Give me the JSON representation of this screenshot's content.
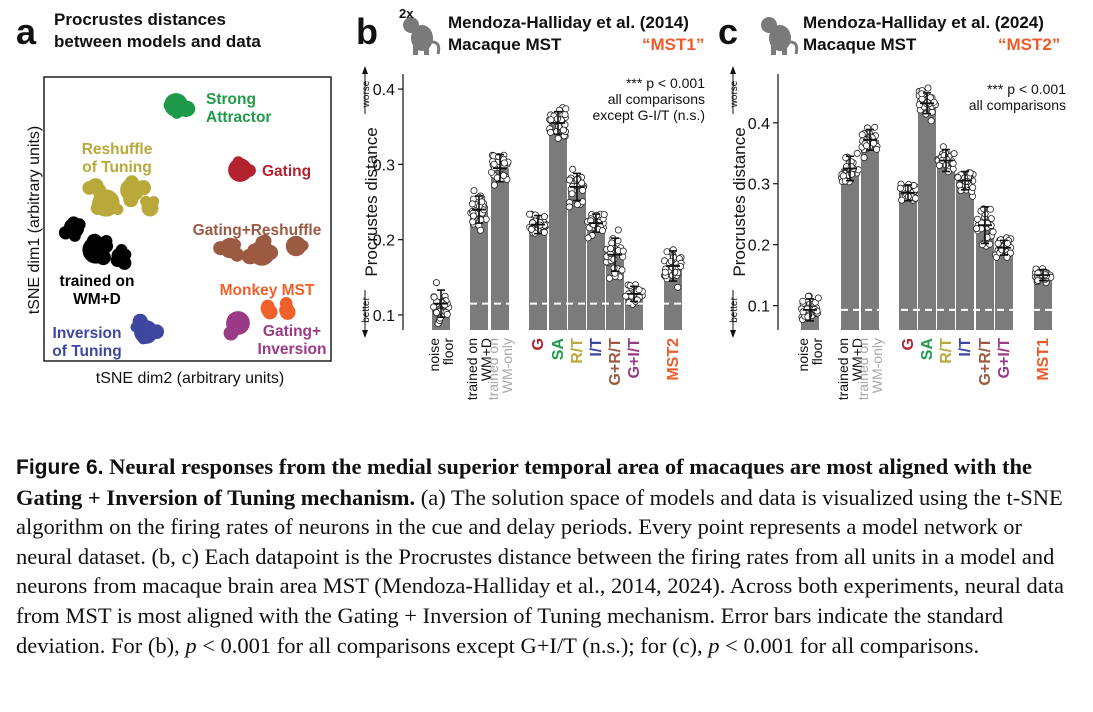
{
  "panel_a": {
    "letter": "a",
    "title_line1": "Procrustes distances",
    "title_line2": "between models and data",
    "xlabel": "tSNE dim2 (arbitrary units)",
    "ylabel": "tSNE dim1 (arbitrary units)",
    "clusters": [
      {
        "label_lines": [
          "Strong",
          "Attractor"
        ],
        "color": "#1f9a4a"
      },
      {
        "label_lines": [
          "Reshuffle",
          "of Tuning"
        ],
        "color": "#b9a83a"
      },
      {
        "label_lines": [
          "Gating"
        ],
        "color": "#b3222f"
      },
      {
        "label_lines": [
          "Gating+Reshuffle"
        ],
        "color": "#9b5a41"
      },
      {
        "label_lines": [
          "trained on",
          "WM+D"
        ],
        "color": "#000000"
      },
      {
        "label_lines": [
          "Monkey MST"
        ],
        "color": "#f0602a"
      },
      {
        "label_lines": [
          "Gating+",
          "Inversion"
        ],
        "color": "#9b3a86"
      },
      {
        "label_lines": [
          "Inversion",
          "of Tuning"
        ],
        "color": "#3d47a0"
      }
    ]
  },
  "chart_data": [
    {
      "type": "bar",
      "panel": "b",
      "header_prefix": "2x",
      "title": "Mendoza-Halliday et al. (2014)",
      "subtitle": "Macaque MST",
      "tag": "“MST1”",
      "ylabel": "Procrustes distance",
      "ylabel_top": "worse",
      "ylabel_bottom": "better",
      "ylim": [
        0.08,
        0.42
      ],
      "yticks": [
        0.1,
        0.2,
        0.3,
        0.4
      ],
      "ytick_labels": [
        "0.1",
        "0.2",
        "0.3",
        "0.4"
      ],
      "stats_lines": [
        "*** p < 0.001",
        "all comparisons",
        "except G-I/T (n.s.)"
      ],
      "noise_floor_line": 0.115,
      "categories": [
        {
          "label": "noise floor",
          "lines": [
            "noise",
            "floor"
          ],
          "value": 0.115,
          "sd": 0.018,
          "color": "#111111"
        },
        {
          "label": "trained on WM+D",
          "lines": [
            "trained on",
            "WM+D"
          ],
          "value": 0.24,
          "sd": 0.018,
          "color": "#111111"
        },
        {
          "label": "trained on WM-only",
          "lines": [
            "trained on",
            "WM-only"
          ],
          "value": 0.295,
          "sd": 0.018,
          "color": "#a8a8a8"
        },
        {
          "label": "G",
          "lines": [
            "G"
          ],
          "value": 0.22,
          "sd": 0.012,
          "color": "#b3222f"
        },
        {
          "label": "SA",
          "lines": [
            "SA"
          ],
          "value": 0.355,
          "sd": 0.015,
          "color": "#1f9a4a"
        },
        {
          "label": "R/T",
          "lines": [
            "R/T"
          ],
          "value": 0.27,
          "sd": 0.018,
          "color": "#b9a83a"
        },
        {
          "label": "I/T",
          "lines": [
            "I/T"
          ],
          "value": 0.222,
          "sd": 0.012,
          "color": "#3d47a0"
        },
        {
          "label": "G+R/T",
          "lines": [
            "G+R/T"
          ],
          "value": 0.18,
          "sd": 0.022,
          "color": "#9b5a41"
        },
        {
          "label": "G+I/T",
          "lines": [
            "G+I/T"
          ],
          "value": 0.128,
          "sd": 0.01,
          "color": "#9b3a86"
        },
        {
          "label": "MST2",
          "lines": [
            "MST2"
          ],
          "value": 0.165,
          "sd": 0.02,
          "color": "#ee5b2b"
        }
      ]
    },
    {
      "type": "bar",
      "panel": "c",
      "title": "Mendoza-Halliday et al. (2024)",
      "subtitle": "Macaque MST",
      "tag": "“MST2”",
      "ylabel": "Procrustes distance",
      "ylabel_top": "worse",
      "ylabel_bottom": "better",
      "ylim": [
        0.06,
        0.48
      ],
      "yticks": [
        0.1,
        0.2,
        0.3,
        0.4
      ],
      "ytick_labels": [
        "0.1",
        "0.2",
        "0.3",
        "0.4"
      ],
      "stats_lines": [
        "*** p < 0.001",
        "all comparisons"
      ],
      "noise_floor_line": 0.093,
      "categories": [
        {
          "label": "noise floor",
          "lines": [
            "noise",
            "floor"
          ],
          "value": 0.093,
          "sd": 0.018,
          "color": "#111111"
        },
        {
          "label": "trained on WM+D",
          "lines": [
            "trained on",
            "WM+D"
          ],
          "value": 0.325,
          "sd": 0.02,
          "color": "#111111"
        },
        {
          "label": "trained on WM-only",
          "lines": [
            "trained on",
            "WM-only"
          ],
          "value": 0.372,
          "sd": 0.017,
          "color": "#a8a8a8"
        },
        {
          "label": "G",
          "lines": [
            "G"
          ],
          "value": 0.285,
          "sd": 0.013,
          "color": "#b3222f"
        },
        {
          "label": "SA",
          "lines": [
            "SA"
          ],
          "value": 0.432,
          "sd": 0.017,
          "color": "#1f9a4a"
        },
        {
          "label": "R/T",
          "lines": [
            "R/T"
          ],
          "value": 0.338,
          "sd": 0.018,
          "color": "#b9a83a"
        },
        {
          "label": "I/T",
          "lines": [
            "I/T"
          ],
          "value": 0.305,
          "sd": 0.015,
          "color": "#3d47a0"
        },
        {
          "label": "G+R/T",
          "lines": [
            "G+R/T"
          ],
          "value": 0.232,
          "sd": 0.03,
          "color": "#9b5a41"
        },
        {
          "label": "G+I/T",
          "lines": [
            "G+I/T"
          ],
          "value": 0.195,
          "sd": 0.012,
          "color": "#9b3a86"
        },
        {
          "label": "MST1",
          "lines": [
            "MST1"
          ],
          "value": 0.15,
          "sd": 0.009,
          "color": "#ee5b2b"
        }
      ]
    }
  ],
  "caption": {
    "lead": "Figure 6.",
    "title": "Neural responses from the medial superior temporal area of macaques are most aligned with the Gating + Inversion of Tuning mechanism.",
    "body_1": "(a) The solution space of models and data is visualized using the t-SNE algorithm on the firing rates of neurons in the cue and delay periods. Every point represents a model network or neural dataset. (b, c) Each datapoint is the Procrustes distance between the firing rates from all units in a model and neurons from macaque brain area MST (Mendoza-Halliday et al., 2014, 2024). Across both experiments, neural data from MST is most aligned with the Gating + Inversion of Tuning mechanism. Error bars indicate the standard deviation. For (b),",
    "p1": "p",
    "body_2": "< 0.001 for all comparisons except G+I/T (n.s.); for (c),",
    "p2": "p",
    "body_3": "< 0.001 for all comparisons."
  }
}
